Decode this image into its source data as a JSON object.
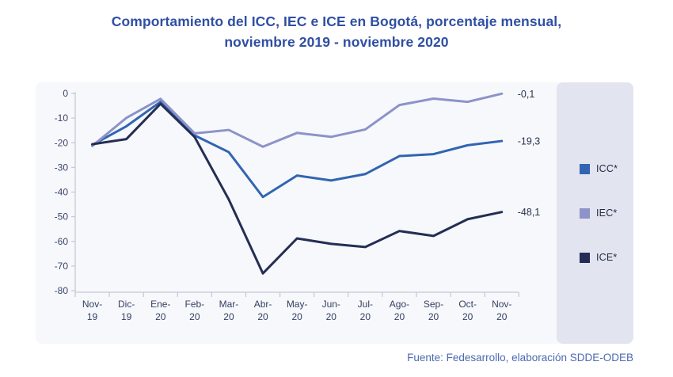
{
  "title": {
    "line1": "Comportamiento del ICC, IEC e ICE en Bogotá, porcentaje mensual,",
    "line2": "noviembre 2019 - noviembre 2020"
  },
  "source": "Fuente: Fedesarrollo, elaboración SDDE-ODEB",
  "legend": {
    "items": [
      {
        "label": "ICC*",
        "color": "#3165B2"
      },
      {
        "label": "IEC*",
        "color": "#8D93C8"
      },
      {
        "label": "ICE*",
        "color": "#242E54"
      }
    ]
  },
  "chart_data": {
    "type": "line",
    "title": "Comportamiento del ICC, IEC e ICE en Bogotá, porcentaje mensual, noviembre 2019 - noviembre 2020",
    "ylabel": "",
    "xlabel": "",
    "ylim": [
      -80,
      0
    ],
    "grid": false,
    "legend_position": "right",
    "y_tick_labels": [
      "0",
      "-10",
      "-20",
      "-30",
      "-40",
      "-50",
      "-60",
      "-70",
      "-80"
    ],
    "x_tick_labels": [
      {
        "top": "Nov-",
        "bottom": "19"
      },
      {
        "top": "Dic-",
        "bottom": "19"
      },
      {
        "top": "Ene-",
        "bottom": "20"
      },
      {
        "top": "Feb-",
        "bottom": "20"
      },
      {
        "top": "Mar-",
        "bottom": "20"
      },
      {
        "top": "Abr-",
        "bottom": "20"
      },
      {
        "top": "May-",
        "bottom": "20"
      },
      {
        "top": "Jun-",
        "bottom": "20"
      },
      {
        "top": "Jul-",
        "bottom": "20"
      },
      {
        "top": "Ago-",
        "bottom": "20"
      },
      {
        "top": "Sep-",
        "bottom": "20"
      },
      {
        "top": "Oct-",
        "bottom": "20"
      },
      {
        "top": "Nov-",
        "bottom": "20"
      }
    ],
    "series": [
      {
        "name": "ICC*",
        "color": "#3165B2",
        "end_label": "-19,3",
        "values": [
          -20.9,
          -13.3,
          -3.4,
          -17.0,
          -23.8,
          -42.0,
          -33.3,
          -35.3,
          -32.7,
          -25.4,
          -24.6,
          -21.0,
          -19.3
        ]
      },
      {
        "name": "IEC*",
        "color": "#8D93C8",
        "end_label": "-0,1",
        "values": [
          -21.3,
          -9.9,
          -2.2,
          -16.2,
          -14.8,
          -21.6,
          -16.0,
          -17.6,
          -14.6,
          -4.7,
          -2.1,
          -3.4,
          -0.1
        ]
      },
      {
        "name": "ICE*",
        "color": "#242E54",
        "end_label": "-48,1",
        "values": [
          -20.6,
          -18.5,
          -4.2,
          -17.7,
          -43.0,
          -73.0,
          -58.8,
          -61.0,
          -62.3,
          -55.8,
          -57.8,
          -51.0,
          -48.1
        ]
      }
    ]
  }
}
